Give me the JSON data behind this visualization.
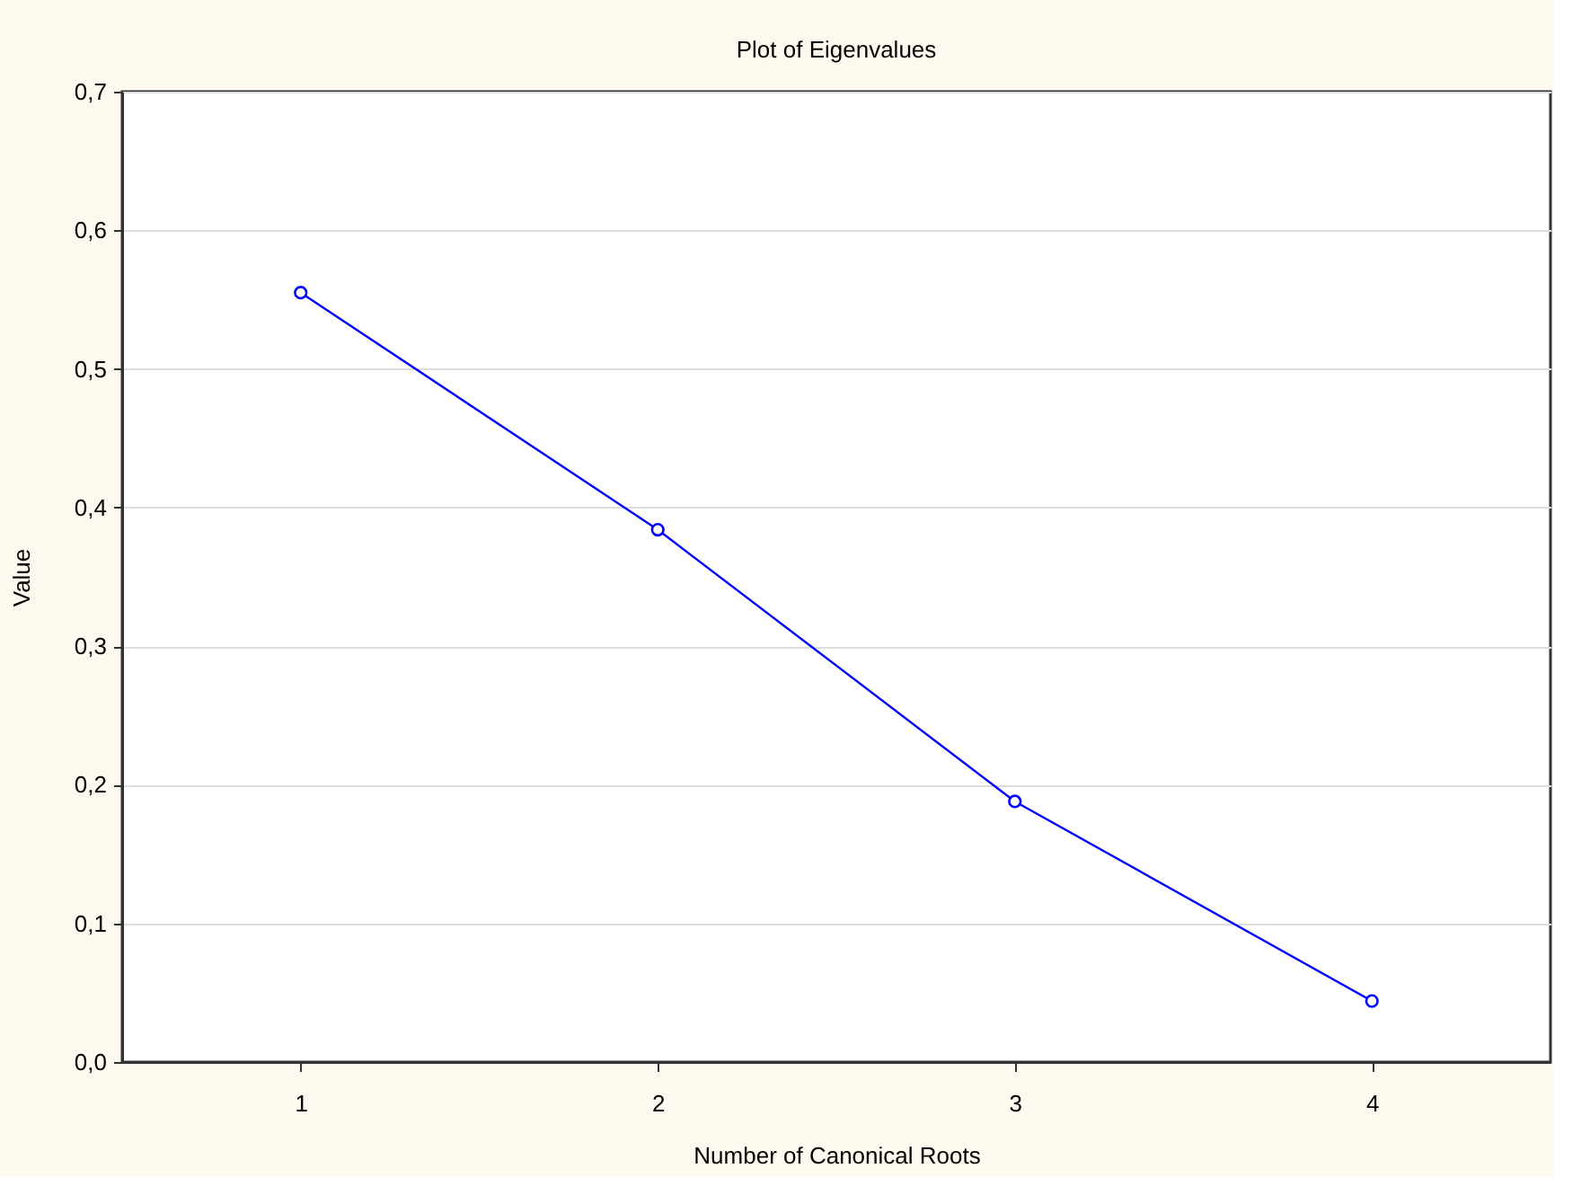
{
  "chart_data": {
    "type": "line",
    "title": "Plot of Eigenvalues",
    "xlabel": "Number of Canonical Roots",
    "ylabel": "Value",
    "x": [
      1,
      2,
      3,
      4
    ],
    "series": [
      {
        "color": "#0000ff",
        "values": [
          0.555,
          0.384,
          0.188,
          0.044
        ]
      }
    ],
    "xlim": [
      0.5,
      4.5
    ],
    "xticks": [
      1,
      2,
      3,
      4
    ],
    "ylim": [
      0.0,
      0.7
    ],
    "yticks": [
      {
        "value": 0.0,
        "label": "0,0"
      },
      {
        "value": 0.1,
        "label": "0,1"
      },
      {
        "value": 0.2,
        "label": "0,2"
      },
      {
        "value": 0.3,
        "label": "0,3"
      },
      {
        "value": 0.4,
        "label": "0,4"
      },
      {
        "value": 0.5,
        "label": "0,5"
      },
      {
        "value": 0.6,
        "label": "0,6"
      },
      {
        "value": 0.7,
        "label": "0,7"
      }
    ],
    "grid": "y",
    "marker": "circle",
    "line_style": "solid"
  }
}
